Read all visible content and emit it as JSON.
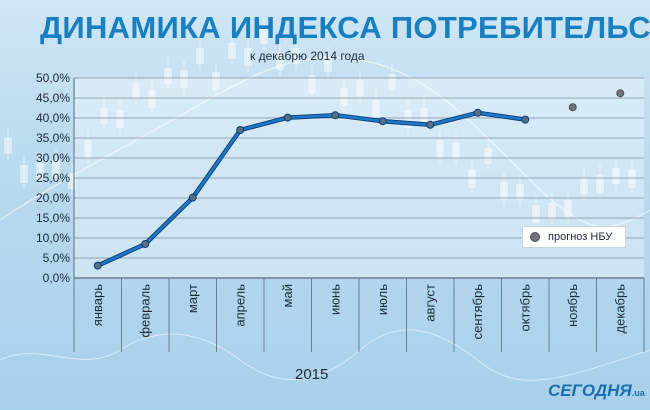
{
  "chart_data": {
    "type": "line",
    "title": "ДИНАМИКА ИНДЕКСА ПОТРЕБИТЕЛЬСКИХ ЦЕН,",
    "subtitle": "к декабрю 2014 года",
    "xlabel": "2015",
    "ylabel": "",
    "categories": [
      "январь",
      "февраль",
      "март",
      "апрель",
      "май",
      "июнь",
      "июль",
      "август",
      "сентябрь",
      "октябрь",
      "ноябрь",
      "декабрь"
    ],
    "yticks": [
      "0,0%",
      "5,0%",
      "10,0%",
      "15,0%",
      "20,0%",
      "25,0%",
      "30,0%",
      "35,0%",
      "40,0%",
      "45,0%",
      "50,0%"
    ],
    "ylim": [
      0,
      50
    ],
    "grid": true,
    "series": [
      {
        "values": [
          3.1,
          8.5,
          20.1,
          37.0,
          40.1,
          40.7,
          39.2,
          38.3,
          41.3,
          39.6,
          null,
          null
        ],
        "color": "#1f78c8"
      },
      {
        "name": "прогноз НБУ",
        "values": [
          null,
          null,
          null,
          null,
          null,
          null,
          null,
          null,
          null,
          null,
          42.7,
          46.2
        ],
        "color": "#6f747a"
      }
    ],
    "legend": {
      "label": "прогноз НБУ",
      "position": "right"
    }
  },
  "branding": {
    "logo": "СЕГОДНЯ",
    "logo_suffix": ".ua"
  }
}
